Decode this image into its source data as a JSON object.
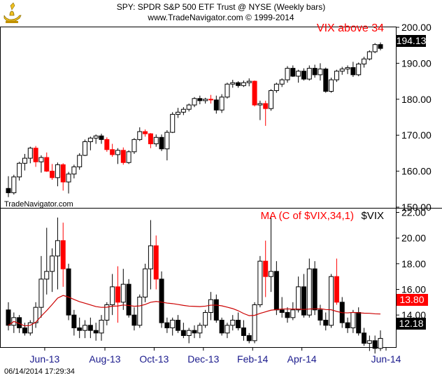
{
  "header": {
    "line1": "SPY:  SPDR S&P 500 ETF Trust @ NYSE  (Weekly bars)",
    "line2": "www.TradeNavigator.com © 1999-2014"
  },
  "logo_icon": "genie-lamp-icon",
  "watermark": "TradeNavigator.com",
  "timestamp": "06/14/2014 17:29:34",
  "colors": {
    "up": "#ffffff",
    "down_red": "#ff0000",
    "down_black": "#000000",
    "ma": "#cc0000",
    "label_red": "#ff0000"
  },
  "chart_data": [
    {
      "type": "candlestick",
      "symbol": "SPY",
      "annotation": "VIX above 34",
      "last_price": "194.13",
      "ylim": [
        150,
        200
      ],
      "yticks": [
        "150.00",
        "160.00",
        "170.00",
        "180.00",
        "190.00",
        "200.00"
      ],
      "x_labels": [
        "Jun-13",
        "Aug-13",
        "Oct-13",
        "Dec-13",
        "Feb-14",
        "Apr-14",
        "Jun-14"
      ],
      "ohlc": [
        [
          155.2,
          158.6,
          152.8,
          154.0
        ],
        [
          154.0,
          159.0,
          153.5,
          158.4
        ],
        [
          158.4,
          162.6,
          157.4,
          162.2
        ],
        [
          162.2,
          164.8,
          160.2,
          163.6
        ],
        [
          163.6,
          166.8,
          162.2,
          166.4
        ],
        [
          166.4,
          167.0,
          161.2,
          162.6
        ],
        [
          162.6,
          164.4,
          159.6,
          163.8
        ],
        [
          163.8,
          165.2,
          159.8,
          160.0
        ],
        [
          160.0,
          162.0,
          157.6,
          158.2
        ],
        [
          158.2,
          162.4,
          155.8,
          161.8
        ],
        [
          161.8,
          162.2,
          154.6,
          157.0
        ],
        [
          157.0,
          159.8,
          153.8,
          159.2
        ],
        [
          159.2,
          161.8,
          158.0,
          161.2
        ],
        [
          161.2,
          165.0,
          160.4,
          164.4
        ],
        [
          164.4,
          168.8,
          164.2,
          168.2
        ],
        [
          168.2,
          169.6,
          165.8,
          169.2
        ],
        [
          169.2,
          170.2,
          167.6,
          169.8
        ],
        [
          169.8,
          170.4,
          167.6,
          168.8
        ],
        [
          168.8,
          169.4,
          165.4,
          166.0
        ],
        [
          166.0,
          167.6,
          164.0,
          164.6
        ],
        [
          164.6,
          166.4,
          162.0,
          165.8
        ],
        [
          165.8,
          166.6,
          161.8,
          162.4
        ],
        [
          162.4,
          165.8,
          162.0,
          165.4
        ],
        [
          165.4,
          169.2,
          164.8,
          168.8
        ],
        [
          168.8,
          172.2,
          168.4,
          171.0
        ],
        [
          171.0,
          171.6,
          169.6,
          170.4
        ],
        [
          170.4,
          170.6,
          166.4,
          167.6
        ],
        [
          167.6,
          170.2,
          166.8,
          169.4
        ],
        [
          169.4,
          170.2,
          165.6,
          166.2
        ],
        [
          166.2,
          171.4,
          163.0,
          170.8
        ],
        [
          170.8,
          176.4,
          170.6,
          175.8
        ],
        [
          175.8,
          177.6,
          174.8,
          176.4
        ],
        [
          176.4,
          177.8,
          175.6,
          177.2
        ],
        [
          177.2,
          178.8,
          176.6,
          178.4
        ],
        [
          178.4,
          180.6,
          177.8,
          180.2
        ],
        [
          180.2,
          181.0,
          178.6,
          179.6
        ],
        [
          179.6,
          180.4,
          178.8,
          180.0
        ],
        [
          180.0,
          181.2,
          178.8,
          179.8
        ],
        [
          179.8,
          181.0,
          176.0,
          177.0
        ],
        [
          177.0,
          181.4,
          176.2,
          180.6
        ],
        [
          180.6,
          184.6,
          180.2,
          184.2
        ],
        [
          184.2,
          185.4,
          183.2,
          184.6
        ],
        [
          184.6,
          185.0,
          183.2,
          183.8
        ],
        [
          183.8,
          185.2,
          183.4,
          184.6
        ],
        [
          184.6,
          185.8,
          183.6,
          185.0
        ],
        [
          185.0,
          185.2,
          178.0,
          178.4
        ],
        [
          178.4,
          179.6,
          174.2,
          178.8
        ],
        [
          178.8,
          179.6,
          172.6,
          177.4
        ],
        [
          177.4,
          182.8,
          176.8,
          182.4
        ],
        [
          182.4,
          184.6,
          181.8,
          184.2
        ],
        [
          184.2,
          185.8,
          183.4,
          185.4
        ],
        [
          185.4,
          189.2,
          184.6,
          188.6
        ],
        [
          188.6,
          189.4,
          186.2,
          186.4
        ],
        [
          186.4,
          188.2,
          184.6,
          187.8
        ],
        [
          187.8,
          188.6,
          185.2,
          185.6
        ],
        [
          185.6,
          189.4,
          185.2,
          188.6
        ],
        [
          188.6,
          189.6,
          186.0,
          186.8
        ],
        [
          186.8,
          190.0,
          185.2,
          188.4
        ],
        [
          188.4,
          188.8,
          181.8,
          182.2
        ],
        [
          182.2,
          186.0,
          181.8,
          185.4
        ],
        [
          185.4,
          188.2,
          184.8,
          187.8
        ],
        [
          187.8,
          189.0,
          186.8,
          188.4
        ],
        [
          188.4,
          189.4,
          187.0,
          188.8
        ],
        [
          188.8,
          190.4,
          186.2,
          186.8
        ],
        [
          186.8,
          190.2,
          186.4,
          189.8
        ],
        [
          189.8,
          191.8,
          188.8,
          191.2
        ],
        [
          191.2,
          193.6,
          190.8,
          193.2
        ],
        [
          193.2,
          195.6,
          192.8,
          195.2
        ],
        [
          195.2,
          195.8,
          193.6,
          194.13
        ]
      ]
    },
    {
      "type": "candlestick",
      "symbol": "$VIX",
      "label": "MA (C of $VIX,34,1)",
      "legend": "$VIX",
      "ma_last": "13.80",
      "last_price": "12.18",
      "ylim": [
        11.5,
        22.3
      ],
      "yticks": [
        "14.00",
        "16.00",
        "18.00",
        "20.00",
        "22.00"
      ],
      "ohlc": [
        [
          14.4,
          15.0,
          12.8,
          13.2
        ],
        [
          13.2,
          14.2,
          12.6,
          13.8
        ],
        [
          13.8,
          14.0,
          12.6,
          13.0
        ],
        [
          13.0,
          13.4,
          12.4,
          12.6
        ],
        [
          12.6,
          13.6,
          12.4,
          13.4
        ],
        [
          13.4,
          15.0,
          13.0,
          14.6
        ],
        [
          14.6,
          18.6,
          13.8,
          16.8
        ],
        [
          16.8,
          20.8,
          15.6,
          17.4
        ],
        [
          17.4,
          19.2,
          15.8,
          18.6
        ],
        [
          18.6,
          21.6,
          16.0,
          19.8
        ],
        [
          19.8,
          21.2,
          16.2,
          17.6
        ],
        [
          17.6,
          18.0,
          13.6,
          14.0
        ],
        [
          14.0,
          14.4,
          12.4,
          13.0
        ],
        [
          13.0,
          13.8,
          12.2,
          12.8
        ],
        [
          12.8,
          13.6,
          12.2,
          13.2
        ],
        [
          13.2,
          13.8,
          12.2,
          12.8
        ],
        [
          12.8,
          13.4,
          12.0,
          12.6
        ],
        [
          12.6,
          14.0,
          12.0,
          13.6
        ],
        [
          13.6,
          15.0,
          13.2,
          14.8
        ],
        [
          14.8,
          17.2,
          14.0,
          16.2
        ],
        [
          16.2,
          17.8,
          13.4,
          15.0
        ],
        [
          15.0,
          17.6,
          14.4,
          16.4
        ],
        [
          16.4,
          16.8,
          13.8,
          14.0
        ],
        [
          14.0,
          14.6,
          12.8,
          13.2
        ],
        [
          13.2,
          15.6,
          13.0,
          15.4
        ],
        [
          15.4,
          18.0,
          15.0,
          17.6
        ],
        [
          17.6,
          21.4,
          16.0,
          19.4
        ],
        [
          19.4,
          20.2,
          16.0,
          16.8
        ],
        [
          16.8,
          17.4,
          13.0,
          13.4
        ],
        [
          13.4,
          13.8,
          12.6,
          13.0
        ],
        [
          13.0,
          13.8,
          12.4,
          13.6
        ],
        [
          13.6,
          14.0,
          12.6,
          12.8
        ],
        [
          12.8,
          13.4,
          12.2,
          12.4
        ],
        [
          12.4,
          13.0,
          11.8,
          12.8
        ],
        [
          12.8,
          13.2,
          12.2,
          12.6
        ],
        [
          12.6,
          13.4,
          12.2,
          13.2
        ],
        [
          13.2,
          14.4,
          13.0,
          14.2
        ],
        [
          14.2,
          15.8,
          13.6,
          15.2
        ],
        [
          15.2,
          15.6,
          13.4,
          13.6
        ],
        [
          13.6,
          13.8,
          12.4,
          12.6
        ],
        [
          12.6,
          13.4,
          12.2,
          13.2
        ],
        [
          13.2,
          14.0,
          12.8,
          13.6
        ],
        [
          13.6,
          14.2,
          12.8,
          13.0
        ],
        [
          13.0,
          13.6,
          12.0,
          12.4
        ],
        [
          12.4,
          12.6,
          11.8,
          12.0
        ],
        [
          12.0,
          15.0,
          11.8,
          14.8
        ],
        [
          14.8,
          18.6,
          14.6,
          18.2
        ],
        [
          18.2,
          19.8,
          15.4,
          17.0
        ],
        [
          17.0,
          21.6,
          15.8,
          17.4
        ],
        [
          17.4,
          18.2,
          14.0,
          14.4
        ],
        [
          14.4,
          15.4,
          13.8,
          14.2
        ],
        [
          14.2,
          14.6,
          13.4,
          13.8
        ],
        [
          13.8,
          15.0,
          13.6,
          14.4
        ],
        [
          14.4,
          17.0,
          14.2,
          16.2
        ],
        [
          16.2,
          17.2,
          13.8,
          14.0
        ],
        [
          14.0,
          18.4,
          13.8,
          17.6
        ],
        [
          17.6,
          18.2,
          14.0,
          14.4
        ],
        [
          14.4,
          14.8,
          13.2,
          13.6
        ],
        [
          13.6,
          14.2,
          12.8,
          13.2
        ],
        [
          13.2,
          17.2,
          13.0,
          17.0
        ],
        [
          17.0,
          18.4,
          14.8,
          15.0
        ],
        [
          15.0,
          15.4,
          13.0,
          13.4
        ],
        [
          13.4,
          13.8,
          12.6,
          13.0
        ],
        [
          13.0,
          14.4,
          12.6,
          14.2
        ],
        [
          14.2,
          14.6,
          12.4,
          12.6
        ],
        [
          12.6,
          13.0,
          11.6,
          11.8
        ],
        [
          11.8,
          12.4,
          11.2,
          12.0
        ],
        [
          12.0,
          12.4,
          11.0,
          11.4
        ],
        [
          11.4,
          12.8,
          11.2,
          12.18
        ]
      ]
    }
  ]
}
